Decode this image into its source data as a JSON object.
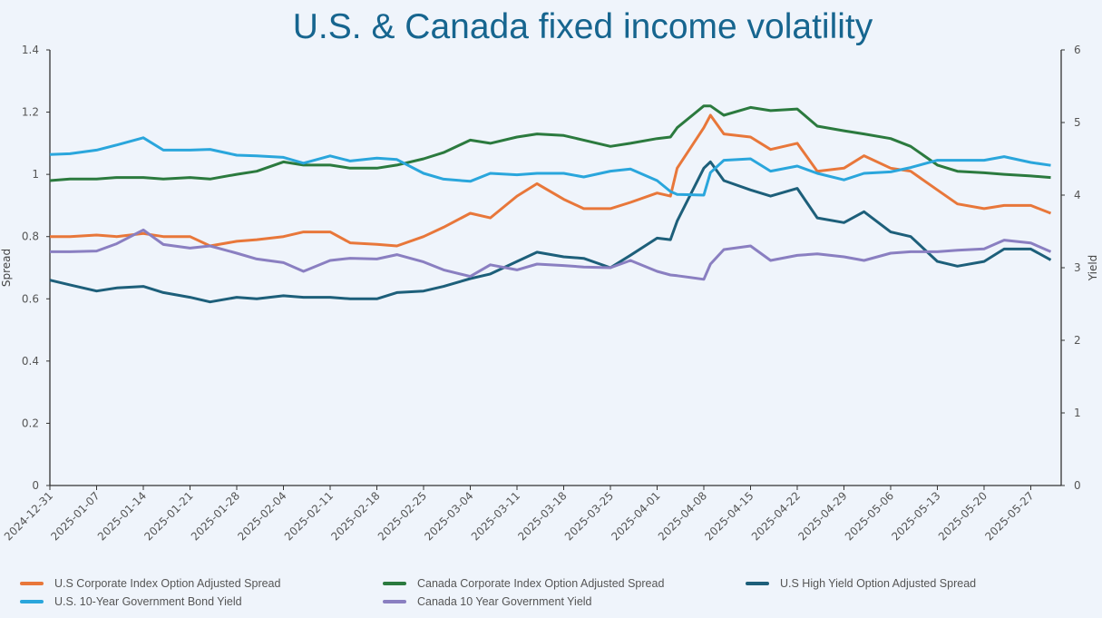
{
  "chart_data": {
    "type": "line",
    "title": "U.S. & Canada fixed income volatility",
    "ylabel": "Spread",
    "y2label": "Yield",
    "ylim": [
      0,
      1.4
    ],
    "y2lim": [
      0,
      6
    ],
    "yticks": [
      "0",
      "0.2",
      "0.4",
      "0.6",
      "0.8",
      "1",
      "1.2",
      "1.4"
    ],
    "y2ticks": [
      "0",
      "1",
      "2",
      "3",
      "4",
      "5",
      "6"
    ],
    "xticks": [
      "2024-12-31",
      "2025-01-07",
      "2025-01-14",
      "2025-01-21",
      "2025-01-28",
      "2025-02-04",
      "2025-02-11",
      "2025-02-18",
      "2025-02-25",
      "2025-03-04",
      "2025-03-11",
      "2025-03-18",
      "2025-03-25",
      "2025-04-01",
      "2025-04-08",
      "2025-04-15",
      "2025-04-22",
      "2025-04-29",
      "2025-05-06",
      "2025-05-13",
      "2025-05-20",
      "2025-05-27"
    ],
    "grid": false,
    "legend_position": "bottom",
    "x": [
      "2024-12-31",
      "2025-01-03",
      "2025-01-07",
      "2025-01-10",
      "2025-01-14",
      "2025-01-17",
      "2025-01-21",
      "2025-01-24",
      "2025-01-28",
      "2025-01-31",
      "2025-02-04",
      "2025-02-07",
      "2025-02-11",
      "2025-02-14",
      "2025-02-18",
      "2025-02-21",
      "2025-02-25",
      "2025-02-28",
      "2025-03-04",
      "2025-03-07",
      "2025-03-11",
      "2025-03-14",
      "2025-03-18",
      "2025-03-21",
      "2025-03-25",
      "2025-03-28",
      "2025-04-01",
      "2025-04-03",
      "2025-04-04",
      "2025-04-08",
      "2025-04-09",
      "2025-04-11",
      "2025-04-15",
      "2025-04-18",
      "2025-04-22",
      "2025-04-25",
      "2025-04-29",
      "2025-05-02",
      "2025-05-06",
      "2025-05-09",
      "2025-05-13",
      "2025-05-16",
      "2025-05-20",
      "2025-05-23",
      "2025-05-27",
      "2025-05-30"
    ],
    "series": [
      {
        "name": "U.S Corporate Index Option Adjusted Spread",
        "axis": "left",
        "color": "#e8773a",
        "values": [
          0.8,
          0.8,
          0.805,
          0.8,
          0.81,
          0.8,
          0.8,
          0.77,
          0.785,
          0.79,
          0.8,
          0.815,
          0.815,
          0.78,
          0.775,
          0.77,
          0.8,
          0.83,
          0.875,
          0.86,
          0.93,
          0.97,
          0.92,
          0.89,
          0.89,
          0.91,
          0.94,
          0.93,
          1.02,
          1.15,
          1.19,
          1.13,
          1.12,
          1.08,
          1.1,
          1.01,
          1.02,
          1.06,
          1.02,
          1.01,
          0.95,
          0.905,
          0.89,
          0.9,
          0.9,
          0.875
        ]
      },
      {
        "name": "Canada Corporate Index Option Adjusted Spread",
        "axis": "left",
        "color": "#2b7a3e",
        "values": [
          0.98,
          0.985,
          0.985,
          0.99,
          0.99,
          0.985,
          0.99,
          0.985,
          1.0,
          1.01,
          1.04,
          1.03,
          1.03,
          1.02,
          1.02,
          1.03,
          1.05,
          1.07,
          1.11,
          1.1,
          1.12,
          1.13,
          1.125,
          1.11,
          1.09,
          1.1,
          1.115,
          1.12,
          1.15,
          1.22,
          1.22,
          1.19,
          1.215,
          1.205,
          1.21,
          1.155,
          1.14,
          1.13,
          1.115,
          1.09,
          1.03,
          1.01,
          1.005,
          1.0,
          0.995,
          0.99
        ]
      },
      {
        "name": "U.S High Yield Option Adjusted Spread",
        "axis": "left",
        "color": "#1d5f7a",
        "values": [
          0.66,
          0.645,
          0.625,
          0.635,
          0.64,
          0.62,
          0.605,
          0.59,
          0.605,
          0.6,
          0.61,
          0.605,
          0.605,
          0.6,
          0.6,
          0.62,
          0.625,
          0.64,
          0.665,
          0.68,
          0.72,
          0.75,
          0.735,
          0.73,
          0.7,
          0.74,
          0.795,
          0.79,
          0.85,
          1.02,
          1.04,
          0.98,
          0.95,
          0.93,
          0.955,
          0.86,
          0.845,
          0.88,
          0.815,
          0.8,
          0.72,
          0.705,
          0.72,
          0.76,
          0.76,
          0.725
        ]
      },
      {
        "name": "U.S. 10-Year Government Bond Yield",
        "axis": "right",
        "color": "#2aa6dc",
        "values": [
          4.56,
          4.57,
          4.62,
          4.69,
          4.79,
          4.62,
          4.62,
          4.63,
          4.55,
          4.54,
          4.52,
          4.44,
          4.54,
          4.47,
          4.51,
          4.49,
          4.3,
          4.22,
          4.19,
          4.3,
          4.28,
          4.3,
          4.3,
          4.25,
          4.33,
          4.36,
          4.2,
          4.05,
          4.01,
          4.0,
          4.31,
          4.48,
          4.5,
          4.33,
          4.4,
          4.3,
          4.21,
          4.3,
          4.32,
          4.38,
          4.48,
          4.48,
          4.48,
          4.53,
          4.45,
          4.41
        ]
      },
      {
        "name": "Canada 10 Year Government Yield",
        "axis": "right",
        "color": "#8a7fc1",
        "values": [
          3.22,
          3.22,
          3.23,
          3.33,
          3.52,
          3.32,
          3.27,
          3.3,
          3.2,
          3.12,
          3.07,
          2.95,
          3.1,
          3.13,
          3.12,
          3.18,
          3.08,
          2.97,
          2.88,
          3.04,
          2.97,
          3.05,
          3.03,
          3.01,
          3.0,
          3.1,
          2.95,
          2.9,
          2.89,
          2.84,
          3.05,
          3.25,
          3.3,
          3.1,
          3.17,
          3.19,
          3.15,
          3.1,
          3.2,
          3.22,
          3.22,
          3.24,
          3.26,
          3.38,
          3.34,
          3.22
        ]
      }
    ]
  }
}
